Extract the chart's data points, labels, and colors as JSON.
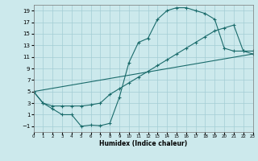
{
  "xlabel": "Humidex (Indice chaleur)",
  "xlim": [
    0,
    23
  ],
  "ylim": [
    -2,
    20
  ],
  "xticks": [
    0,
    1,
    2,
    3,
    4,
    5,
    6,
    7,
    8,
    9,
    10,
    11,
    12,
    13,
    14,
    15,
    16,
    17,
    18,
    19,
    20,
    21,
    22,
    23
  ],
  "yticks": [
    -1,
    1,
    3,
    5,
    7,
    9,
    11,
    13,
    15,
    17,
    19
  ],
  "bg_color": "#cce9ec",
  "grid_color": "#a3cdd4",
  "line_color": "#1a6b6b",
  "curve1_x": [
    0,
    1,
    2,
    3,
    4,
    5,
    6,
    7,
    8,
    9,
    10,
    11,
    12,
    13,
    14,
    15,
    16,
    17,
    18,
    19,
    20,
    21,
    22,
    23
  ],
  "curve1_y": [
    5,
    3,
    2,
    1,
    1,
    -1,
    -0.8,
    -0.9,
    -0.5,
    4,
    10,
    13.5,
    14.2,
    17.5,
    19.0,
    19.5,
    19.5,
    19.0,
    18.5,
    17.5,
    12.5,
    12,
    12,
    12
  ],
  "curve2_x": [
    0,
    1,
    2,
    3,
    4,
    5,
    6,
    7,
    8,
    9,
    10,
    11,
    12,
    13,
    14,
    15,
    16,
    17,
    18,
    19,
    20,
    21,
    22,
    23
  ],
  "curve2_y": [
    5,
    3,
    2.5,
    2.5,
    2.5,
    2.5,
    2.7,
    3.0,
    4.5,
    5.5,
    6.5,
    7.5,
    8.5,
    9.5,
    10.5,
    11.5,
    12.5,
    13.5,
    14.5,
    15.5,
    16.0,
    16.5,
    12,
    11.5
  ],
  "curve3_x": [
    0,
    23
  ],
  "curve3_y": [
    5,
    11.5
  ]
}
